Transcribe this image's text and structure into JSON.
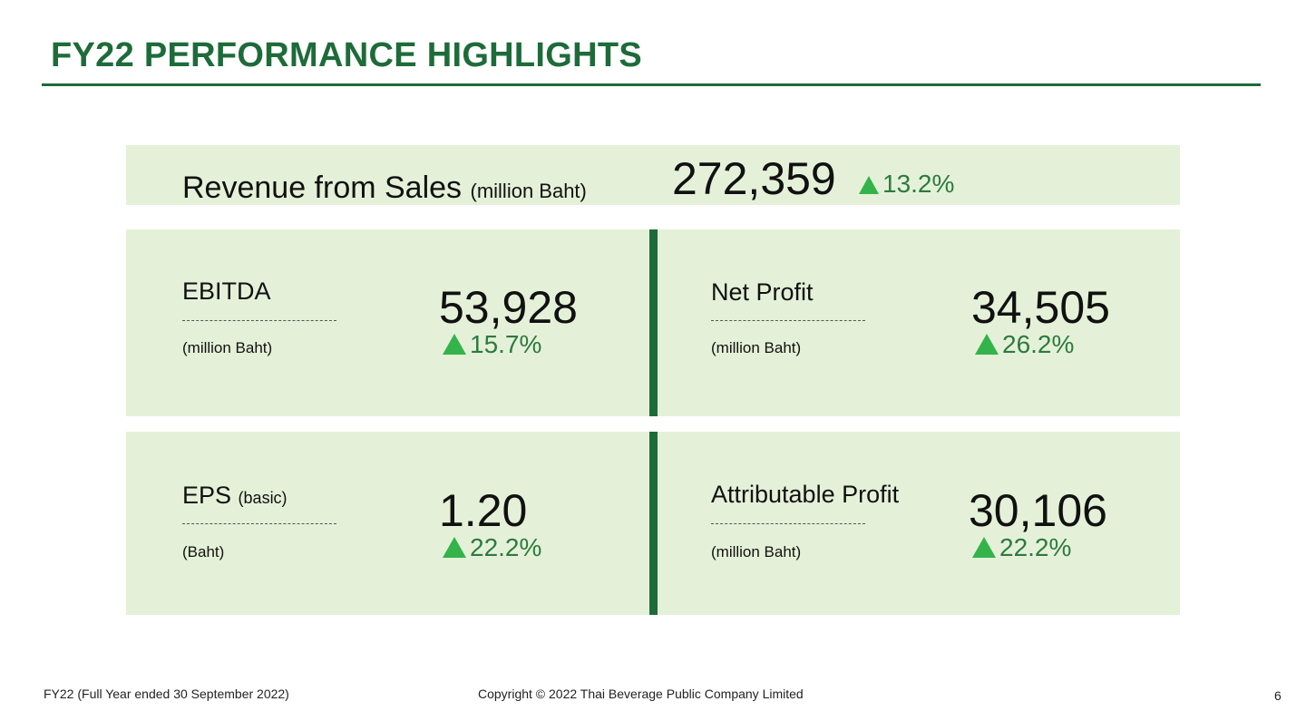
{
  "header": {
    "title": "FY22 PERFORMANCE HIGHLIGHTS"
  },
  "revenue": {
    "label": "Revenue from Sales",
    "unit": "(million Baht)",
    "value": "272,359",
    "change": "13.2%"
  },
  "metrics": [
    {
      "label": "EBITDA",
      "qualifier": "",
      "unit": "(million Baht)",
      "value": "53,928",
      "change": "15.7%"
    },
    {
      "label": "Net Profit",
      "qualifier": "",
      "unit": "(million Baht)",
      "value": "34,505",
      "change": "26.2%"
    },
    {
      "label": "EPS",
      "qualifier": "(basic)",
      "unit": "(Baht)",
      "value": "1.20",
      "change": "22.2%"
    },
    {
      "label": "Attributable Profit",
      "qualifier": "",
      "unit": "(million Baht)",
      "value": "30,106",
      "change": "22.2%"
    }
  ],
  "footer": {
    "period": "FY22 (Full Year ended 30 September 2022)",
    "copyright": "Copyright © 2022 Thai Beverage Public Company Limited",
    "page_number": "6"
  },
  "colors": {
    "brand_green": "#1e6b3a",
    "panel_bg": "#e4f1d8",
    "up_green": "#33b34a",
    "change_text": "#2d7a3e"
  }
}
